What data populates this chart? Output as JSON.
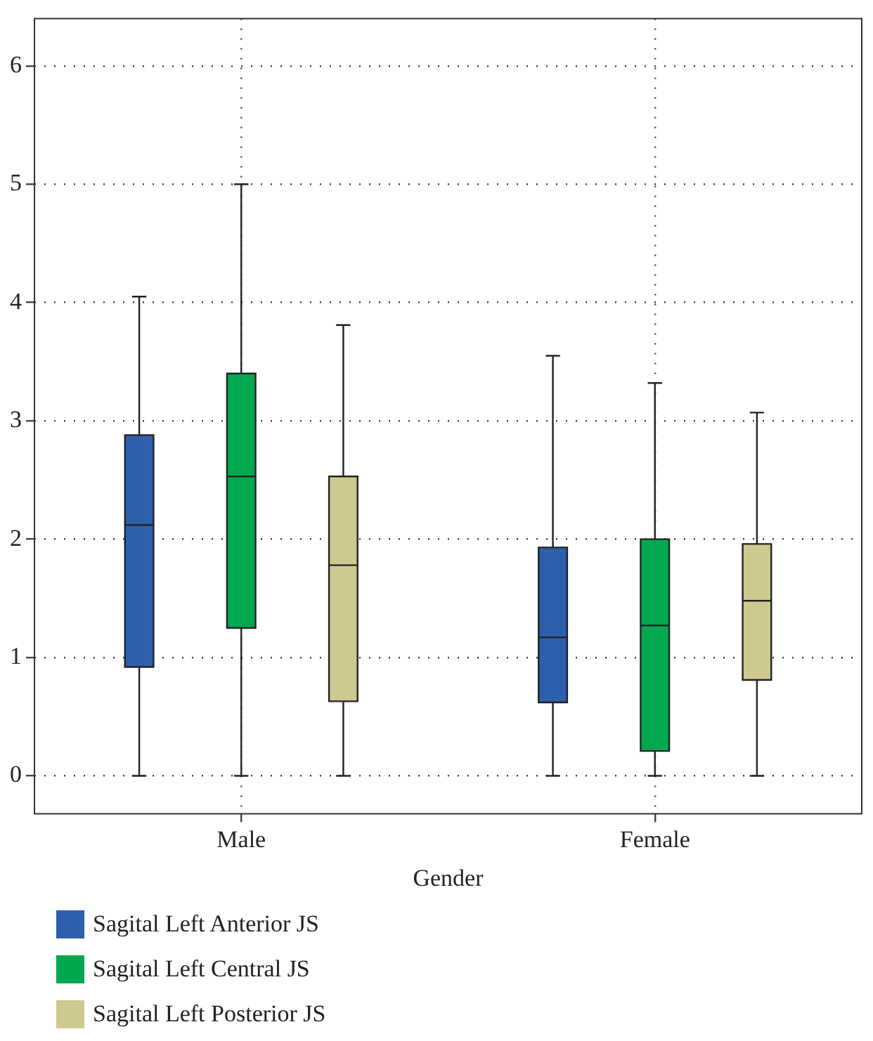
{
  "chart_data": {
    "type": "box",
    "xlabel": "Gender",
    "categories": [
      "Male",
      "Female"
    ],
    "series": [
      {
        "name": "Sagital Left Anterior JS",
        "color": "#2e5faa",
        "boxes": [
          {
            "low": 0,
            "q1": 0.92,
            "median": 2.12,
            "q3": 2.88,
            "high": 4.05
          },
          {
            "low": 0,
            "q1": 0.62,
            "median": 1.17,
            "q3": 1.93,
            "high": 3.55
          }
        ]
      },
      {
        "name": "Sagital Left Central JS",
        "color": "#00a94f",
        "boxes": [
          {
            "low": 0,
            "q1": 1.25,
            "median": 2.53,
            "q3": 3.4,
            "high": 5.0
          },
          {
            "low": 0,
            "q1": 0.21,
            "median": 1.27,
            "q3": 2.0,
            "high": 3.32
          }
        ]
      },
      {
        "name": "Sagital Left Posterior JS",
        "color": "#cdc98f",
        "boxes": [
          {
            "low": 0,
            "q1": 0.63,
            "median": 1.78,
            "q3": 2.53,
            "high": 3.81
          },
          {
            "low": 0,
            "q1": 0.81,
            "median": 1.48,
            "q3": 1.96,
            "high": 3.07
          }
        ]
      }
    ],
    "ylim": [
      -0.32,
      6.4
    ],
    "yticks": [
      0,
      1,
      2,
      3,
      4,
      5,
      6
    ],
    "grid": true,
    "legend": "bottom"
  }
}
